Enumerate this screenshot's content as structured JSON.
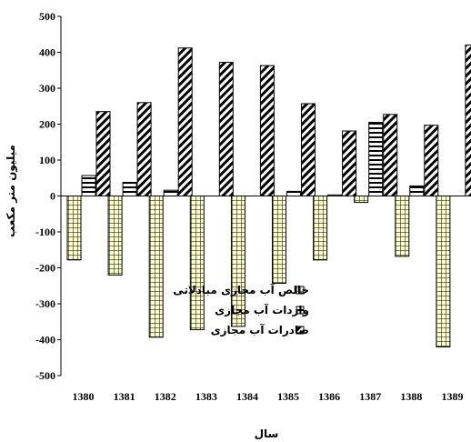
{
  "chart_data": {
    "type": "bar",
    "title": "",
    "xlabel": "سال",
    "ylabel": "میلیون متر مکعب",
    "ylim": [
      -500,
      500
    ],
    "yticks": [
      500,
      400,
      300,
      200,
      100,
      0,
      -100,
      -200,
      -300,
      -400,
      -500
    ],
    "grid": false,
    "legend_position": "bottom-right",
    "categories": [
      "1380",
      "1381",
      "1382",
      "1383",
      "1384",
      "1385",
      "1386",
      "1387",
      "1388",
      "1389"
    ],
    "series": [
      {
        "name": "خالص آب مجازی مبادلاتی",
        "pattern": "grid-yellow",
        "color": "#ffffcc",
        "values": [
          -178,
          -220,
          -393,
          -372,
          -363,
          -243,
          -178,
          -18,
          -168,
          -420
        ]
      },
      {
        "name": "واردات آب مجازی",
        "pattern": "horizontal-stripes",
        "color": "#ffffff",
        "values": [
          57,
          38,
          16,
          0,
          0,
          13,
          3,
          205,
          28,
          0
        ]
      },
      {
        "name": "صادرات آب مجازی",
        "pattern": "diagonal-stripes",
        "color": "#ffffff",
        "values": [
          235,
          260,
          412,
          372,
          363,
          257,
          181,
          227,
          197,
          420
        ]
      }
    ]
  }
}
